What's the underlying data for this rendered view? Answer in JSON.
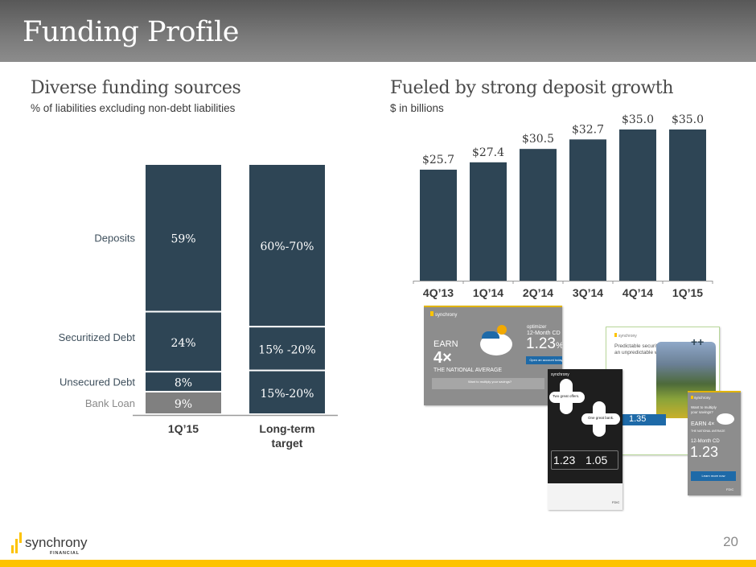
{
  "header": {
    "title": "Funding Profile"
  },
  "left_section": {
    "title": "Diverse funding sources",
    "subtitle": "% of liabilities excluding non-debt liabilities"
  },
  "right_section": {
    "title": "Fueled by strong deposit growth",
    "subtitle": "$ in billions"
  },
  "colors": {
    "navy": "#2e4555",
    "bank_loan_gray": "#808080",
    "accent_yellow": "#fdc300"
  },
  "chart_data": [
    {
      "type": "bar",
      "stacked": true,
      "title": "Diverse funding sources",
      "subtitle": "% of liabilities excluding non-debt liabilities",
      "categories": [
        "1Q’15",
        "Long-term target"
      ],
      "category_labels": [
        [
          "1Q’15"
        ],
        [
          "Long-term",
          "target"
        ]
      ],
      "series_labels": [
        "Deposits",
        "Securitized Debt",
        "Unsecured Debt",
        "Bank Loan"
      ],
      "bars": [
        {
          "category": "1Q’15",
          "segments": [
            {
              "name": "Bank Loan",
              "value": 9,
              "label": "9%",
              "color": "#808080"
            },
            {
              "name": "Unsecured Debt",
              "value": 8,
              "label": "8%",
              "color": "#2e4555"
            },
            {
              "name": "Securitized Debt",
              "value": 24,
              "label": "24%",
              "color": "#2e4555"
            },
            {
              "name": "Deposits",
              "value": 59,
              "label": "59%",
              "color": "#2e4555"
            }
          ]
        },
        {
          "category": "Long-term target",
          "segments": [
            {
              "name": "Unsecured Debt + Bank Loan",
              "value": 17.5,
              "label": "15%-20%",
              "color": "#2e4555"
            },
            {
              "name": "Securitized Debt",
              "value": 17.5,
              "label": "15% -20%",
              "color": "#2e4555"
            },
            {
              "name": "Deposits",
              "value": 65,
              "label": "60%-70%",
              "color": "#2e4555"
            }
          ]
        }
      ],
      "ylim": [
        0,
        100
      ],
      "grid": false,
      "legend": "left"
    },
    {
      "type": "bar",
      "title": "Fueled by strong deposit growth",
      "subtitle": "$ in billions",
      "categories": [
        "4Q’13",
        "1Q’14",
        "2Q’14",
        "3Q’14",
        "4Q’14",
        "1Q’15"
      ],
      "values": [
        25.7,
        27.4,
        30.5,
        32.7,
        35.0,
        35.0
      ],
      "value_labels": [
        "$25.7",
        "$27.4",
        "$30.5",
        "$32.7",
        "$35.0",
        "$35.0"
      ],
      "ylabel": "$ in billions",
      "ylim": [
        0,
        35.0
      ],
      "grid": false
    }
  ],
  "ads": {
    "ad1": {
      "brand": "synchrony",
      "headline1": "EARN",
      "headline2": "4×",
      "headline3": "THE NATIONAL AVERAGE",
      "product": "optimizer",
      "term": "12-Month CD",
      "rate": "1.23",
      "rate_unit": "%",
      "apy": "APY",
      "cta": "Open an account today",
      "banner": "Want to multiply your savings?",
      "fdic": "FDIC"
    },
    "ad2": {
      "brand": "synchrony",
      "line1": "Two great offers.",
      "line2": "One great bank.",
      "rate1": "1.23",
      "rate2": "1.05",
      "fdic": "FDIC"
    },
    "ad3": {
      "brand": "synchrony",
      "headline": "Predictable security in an unpredictable world.",
      "rate": "1.35",
      "term": "24-Month CD and IRA CD"
    },
    "ad4": {
      "brand": "synchrony",
      "headline": "Want to multiply your savings?",
      "earn": "EARN 4×",
      "national": "THE NATIONAL AVERAGE",
      "term": "12-Month CD",
      "rate": "1.23",
      "cta": "Learn more now",
      "fdic": "FDIC"
    }
  },
  "footer": {
    "logo_text": "synchrony",
    "logo_sub": "FINANCIAL",
    "page_number": "20"
  }
}
